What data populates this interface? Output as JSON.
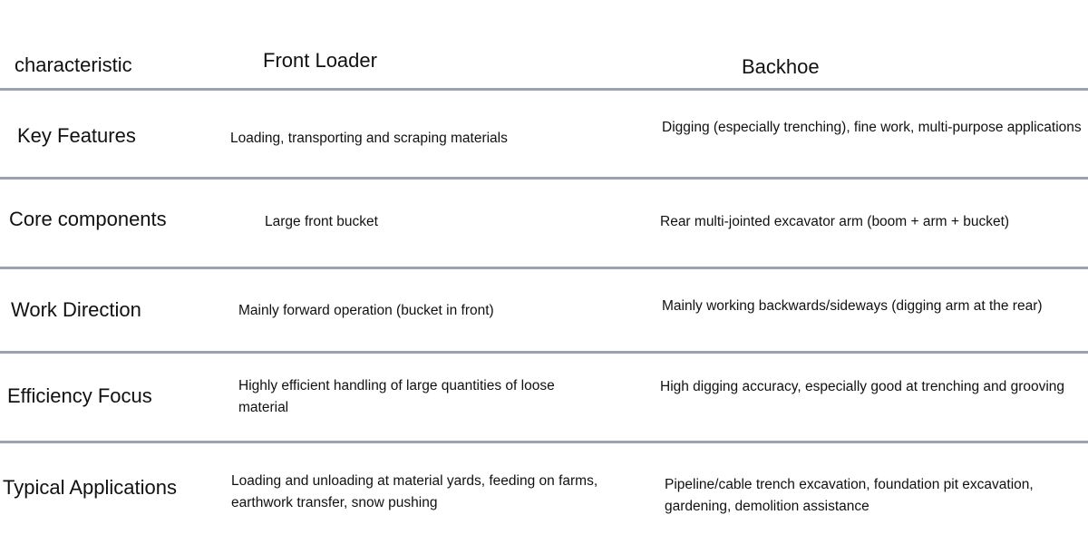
{
  "header": {
    "characteristic": "characteristic",
    "front_loader": "Front Loader",
    "backhoe": "Backhoe"
  },
  "rows": [
    {
      "label": "Key Features",
      "front_loader": "Loading, transporting and scraping materials",
      "backhoe": "Digging (especially trenching), fine work, multi-purpose applications"
    },
    {
      "label": "Core components",
      "front_loader": "Large front bucket",
      "backhoe": "Rear multi-jointed excavator arm (boom + arm + bucket)"
    },
    {
      "label": "Work Direction",
      "front_loader": "Mainly forward operation (bucket in front)",
      "backhoe": "Mainly working backwards/sideways (digging arm at the rear)"
    },
    {
      "label": "Efficiency Focus",
      "front_loader": "Highly efficient handling of large quantities of loose material",
      "backhoe": "High digging accuracy, especially good at trenching and grooving"
    },
    {
      "label": "Typical Applications",
      "front_loader": "Loading and unloading at material yards, feeding on farms, earthwork transfer, snow pushing",
      "backhoe": "Pipeline/cable trench excavation, foundation pit excavation, gardening, demolition assistance"
    }
  ],
  "colors": {
    "rule": "#9aa3b0",
    "text": "#111111"
  }
}
